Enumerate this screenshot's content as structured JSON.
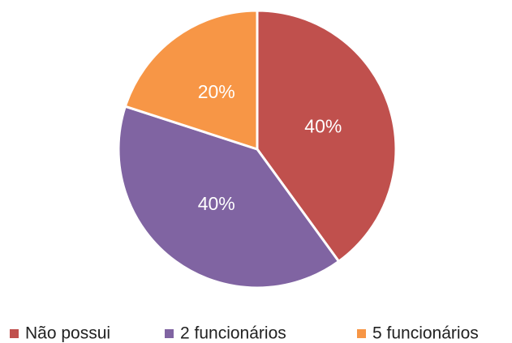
{
  "chart_data": {
    "type": "pie",
    "categories": [
      "Não possui",
      "2 funcionários",
      "5 funcionários"
    ],
    "values": [
      40,
      40,
      20
    ],
    "value_labels": [
      "40%",
      "40%",
      "20%"
    ],
    "colors": [
      "#c0504d",
      "#8064a2",
      "#f79646"
    ],
    "legend": "bottom"
  }
}
